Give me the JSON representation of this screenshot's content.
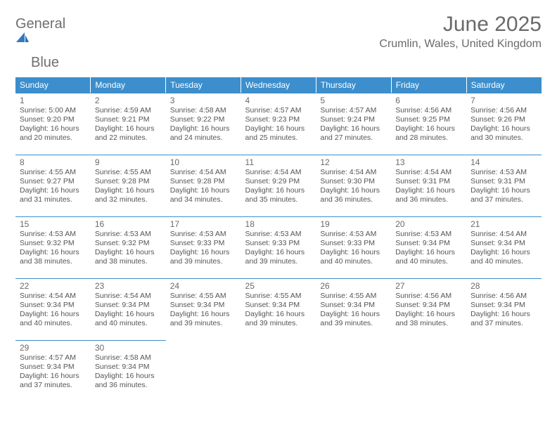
{
  "brand": {
    "word1": "General",
    "word2": "Blue"
  },
  "title": "June 2025",
  "location": "Crumlin, Wales, United Kingdom",
  "colors": {
    "header_bg": "#3c8ecc",
    "header_text": "#ffffff",
    "cell_border": "#3c8ecc",
    "body_text": "#555555",
    "title_text": "#6a6a6a",
    "logo_gray": "#6f6f6f",
    "logo_blue": "#2f7bbf",
    "background": "#ffffff"
  },
  "weekdays": [
    "Sunday",
    "Monday",
    "Tuesday",
    "Wednesday",
    "Thursday",
    "Friday",
    "Saturday"
  ],
  "days": [
    {
      "n": 1,
      "sunrise": "5:00 AM",
      "sunset": "9:20 PM",
      "dl": "16 hours and 20 minutes."
    },
    {
      "n": 2,
      "sunrise": "4:59 AM",
      "sunset": "9:21 PM",
      "dl": "16 hours and 22 minutes."
    },
    {
      "n": 3,
      "sunrise": "4:58 AM",
      "sunset": "9:22 PM",
      "dl": "16 hours and 24 minutes."
    },
    {
      "n": 4,
      "sunrise": "4:57 AM",
      "sunset": "9:23 PM",
      "dl": "16 hours and 25 minutes."
    },
    {
      "n": 5,
      "sunrise": "4:57 AM",
      "sunset": "9:24 PM",
      "dl": "16 hours and 27 minutes."
    },
    {
      "n": 6,
      "sunrise": "4:56 AM",
      "sunset": "9:25 PM",
      "dl": "16 hours and 28 minutes."
    },
    {
      "n": 7,
      "sunrise": "4:56 AM",
      "sunset": "9:26 PM",
      "dl": "16 hours and 30 minutes."
    },
    {
      "n": 8,
      "sunrise": "4:55 AM",
      "sunset": "9:27 PM",
      "dl": "16 hours and 31 minutes."
    },
    {
      "n": 9,
      "sunrise": "4:55 AM",
      "sunset": "9:28 PM",
      "dl": "16 hours and 32 minutes."
    },
    {
      "n": 10,
      "sunrise": "4:54 AM",
      "sunset": "9:28 PM",
      "dl": "16 hours and 34 minutes."
    },
    {
      "n": 11,
      "sunrise": "4:54 AM",
      "sunset": "9:29 PM",
      "dl": "16 hours and 35 minutes."
    },
    {
      "n": 12,
      "sunrise": "4:54 AM",
      "sunset": "9:30 PM",
      "dl": "16 hours and 36 minutes."
    },
    {
      "n": 13,
      "sunrise": "4:54 AM",
      "sunset": "9:31 PM",
      "dl": "16 hours and 36 minutes."
    },
    {
      "n": 14,
      "sunrise": "4:53 AM",
      "sunset": "9:31 PM",
      "dl": "16 hours and 37 minutes."
    },
    {
      "n": 15,
      "sunrise": "4:53 AM",
      "sunset": "9:32 PM",
      "dl": "16 hours and 38 minutes."
    },
    {
      "n": 16,
      "sunrise": "4:53 AM",
      "sunset": "9:32 PM",
      "dl": "16 hours and 38 minutes."
    },
    {
      "n": 17,
      "sunrise": "4:53 AM",
      "sunset": "9:33 PM",
      "dl": "16 hours and 39 minutes."
    },
    {
      "n": 18,
      "sunrise": "4:53 AM",
      "sunset": "9:33 PM",
      "dl": "16 hours and 39 minutes."
    },
    {
      "n": 19,
      "sunrise": "4:53 AM",
      "sunset": "9:33 PM",
      "dl": "16 hours and 40 minutes."
    },
    {
      "n": 20,
      "sunrise": "4:53 AM",
      "sunset": "9:34 PM",
      "dl": "16 hours and 40 minutes."
    },
    {
      "n": 21,
      "sunrise": "4:54 AM",
      "sunset": "9:34 PM",
      "dl": "16 hours and 40 minutes."
    },
    {
      "n": 22,
      "sunrise": "4:54 AM",
      "sunset": "9:34 PM",
      "dl": "16 hours and 40 minutes."
    },
    {
      "n": 23,
      "sunrise": "4:54 AM",
      "sunset": "9:34 PM",
      "dl": "16 hours and 40 minutes."
    },
    {
      "n": 24,
      "sunrise": "4:55 AM",
      "sunset": "9:34 PM",
      "dl": "16 hours and 39 minutes."
    },
    {
      "n": 25,
      "sunrise": "4:55 AM",
      "sunset": "9:34 PM",
      "dl": "16 hours and 39 minutes."
    },
    {
      "n": 26,
      "sunrise": "4:55 AM",
      "sunset": "9:34 PM",
      "dl": "16 hours and 39 minutes."
    },
    {
      "n": 27,
      "sunrise": "4:56 AM",
      "sunset": "9:34 PM",
      "dl": "16 hours and 38 minutes."
    },
    {
      "n": 28,
      "sunrise": "4:56 AM",
      "sunset": "9:34 PM",
      "dl": "16 hours and 37 minutes."
    },
    {
      "n": 29,
      "sunrise": "4:57 AM",
      "sunset": "9:34 PM",
      "dl": "16 hours and 37 minutes."
    },
    {
      "n": 30,
      "sunrise": "4:58 AM",
      "sunset": "9:34 PM",
      "dl": "16 hours and 36 minutes."
    }
  ],
  "labels": {
    "sunrise": "Sunrise:",
    "sunset": "Sunset:",
    "daylight": "Daylight:"
  }
}
